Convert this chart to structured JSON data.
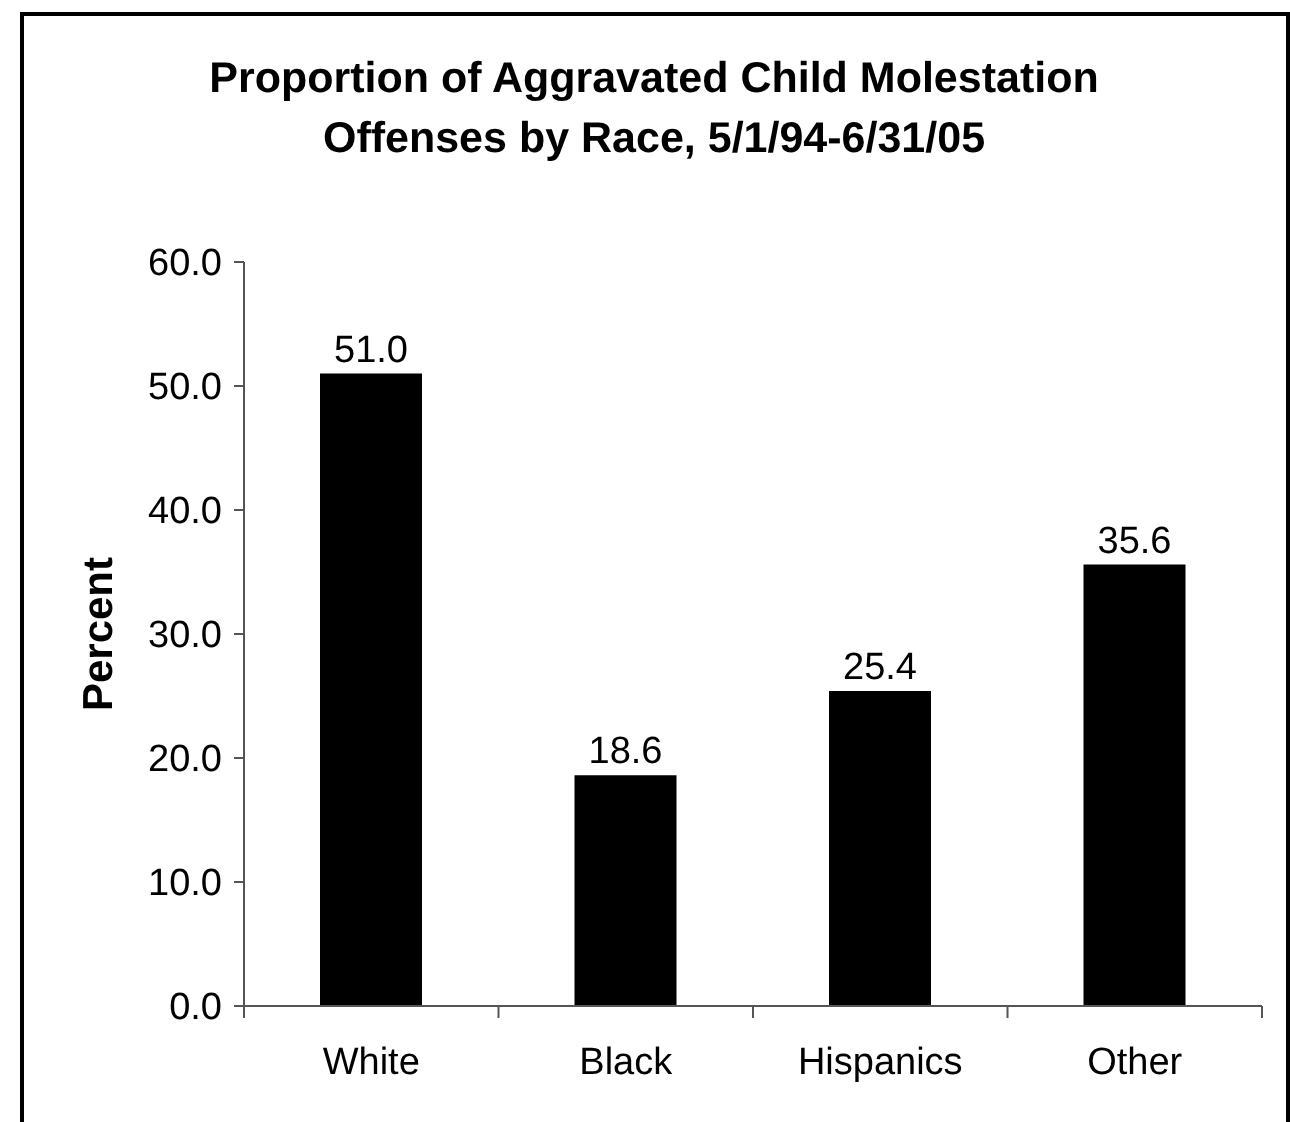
{
  "chart_data": {
    "type": "bar",
    "title": "Proportion of Aggravated Child Molestation Offenses by Race, 5/1/94-6/31/05",
    "ylabel": "Percent",
    "categories": [
      "White",
      "Black",
      "Hispanics",
      "Other"
    ],
    "values": [
      51.0,
      18.6,
      25.4,
      35.6
    ],
    "value_labels": [
      "51.0",
      "18.6",
      "25.4",
      "35.6"
    ],
    "color": "#000000",
    "ylim": [
      0,
      60
    ],
    "yticks": [
      {
        "value": 0,
        "label": "0.0"
      },
      {
        "value": 10,
        "label": "10.0"
      },
      {
        "value": 20,
        "label": "20.0"
      },
      {
        "value": 30,
        "label": "30.0"
      },
      {
        "value": 40,
        "label": "40.0"
      },
      {
        "value": 50,
        "label": "50.0"
      },
      {
        "value": 60,
        "label": "60.0"
      }
    ]
  }
}
